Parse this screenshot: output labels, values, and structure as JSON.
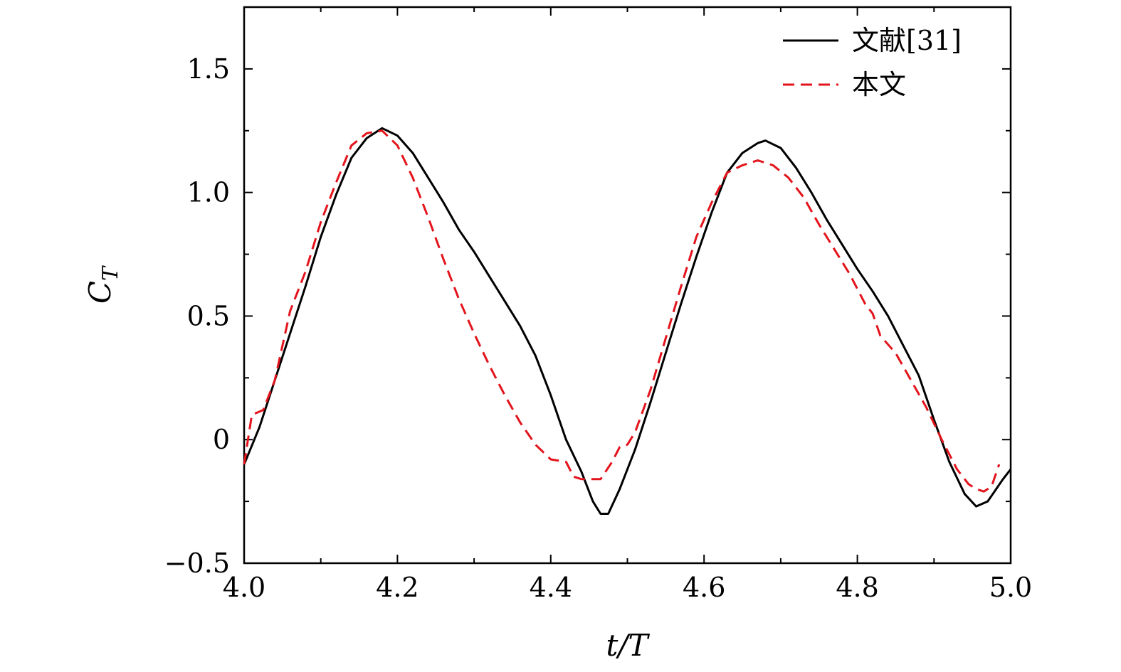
{
  "chart_data": {
    "type": "line",
    "xlabel": "t/T",
    "ylabel": "C_T",
    "xlim": [
      4.0,
      5.0
    ],
    "ylim": [
      -0.5,
      1.75
    ],
    "x_ticks": [
      4.0,
      4.2,
      4.4,
      4.6,
      4.8,
      5.0
    ],
    "x_tick_labels": [
      "4.0",
      "4.2",
      "4.4",
      "4.6",
      "4.8",
      "5.0"
    ],
    "y_ticks": [
      -0.5,
      0,
      0.5,
      1.0,
      1.5
    ],
    "y_tick_labels": [
      "−0.5",
      "0",
      "0.5",
      "1.0",
      "1.5"
    ],
    "legend_position": "top-right",
    "grid": false,
    "series": [
      {
        "name": "文献[31]",
        "style": "solid",
        "color": "#000000",
        "x": [
          4.0,
          4.02,
          4.04,
          4.06,
          4.08,
          4.1,
          4.12,
          4.14,
          4.16,
          4.18,
          4.2,
          4.22,
          4.24,
          4.26,
          4.28,
          4.3,
          4.32,
          4.34,
          4.36,
          4.38,
          4.4,
          4.42,
          4.44,
          4.455,
          4.465,
          4.475,
          4.49,
          4.51,
          4.53,
          4.55,
          4.57,
          4.59,
          4.61,
          4.63,
          4.65,
          4.67,
          4.68,
          4.7,
          4.72,
          4.74,
          4.76,
          4.78,
          4.8,
          4.82,
          4.84,
          4.86,
          4.88,
          4.9,
          4.92,
          4.94,
          4.955,
          4.97,
          4.99,
          5.0
        ],
        "y": [
          -0.1,
          0.05,
          0.24,
          0.43,
          0.62,
          0.82,
          0.99,
          1.14,
          1.22,
          1.26,
          1.23,
          1.16,
          1.06,
          0.96,
          0.85,
          0.76,
          0.66,
          0.56,
          0.46,
          0.34,
          0.18,
          0.0,
          -0.13,
          -0.25,
          -0.3,
          -0.3,
          -0.2,
          -0.04,
          0.15,
          0.35,
          0.55,
          0.74,
          0.92,
          1.08,
          1.16,
          1.2,
          1.21,
          1.18,
          1.1,
          1.0,
          0.89,
          0.79,
          0.69,
          0.6,
          0.5,
          0.38,
          0.26,
          0.08,
          -0.09,
          -0.22,
          -0.27,
          -0.25,
          -0.16,
          -0.12
        ]
      },
      {
        "name": "本文",
        "style": "dashed",
        "color": "#e3141c",
        "x": [
          4.0,
          4.01,
          4.025,
          4.04,
          4.06,
          4.08,
          4.1,
          4.12,
          4.14,
          4.16,
          4.18,
          4.2,
          4.22,
          4.24,
          4.26,
          4.28,
          4.3,
          4.32,
          4.34,
          4.36,
          4.38,
          4.4,
          4.42,
          4.43,
          4.44,
          4.45,
          4.465,
          4.48,
          4.49,
          4.5,
          4.51,
          4.53,
          4.55,
          4.57,
          4.59,
          4.61,
          4.63,
          4.65,
          4.67,
          4.69,
          4.71,
          4.73,
          4.75,
          4.77,
          4.79,
          4.81,
          4.82,
          4.83,
          4.85,
          4.87,
          4.89,
          4.91,
          4.93,
          4.945,
          4.955,
          4.965,
          4.975,
          4.985
        ],
        "y": [
          -0.1,
          0.1,
          0.12,
          0.24,
          0.52,
          0.68,
          0.88,
          1.04,
          1.19,
          1.24,
          1.25,
          1.19,
          1.06,
          0.9,
          0.73,
          0.57,
          0.43,
          0.3,
          0.18,
          0.07,
          -0.02,
          -0.08,
          -0.09,
          -0.15,
          -0.16,
          -0.16,
          -0.16,
          -0.09,
          -0.03,
          -0.02,
          0.03,
          0.2,
          0.41,
          0.62,
          0.82,
          0.96,
          1.08,
          1.11,
          1.13,
          1.11,
          1.06,
          0.98,
          0.87,
          0.77,
          0.67,
          0.55,
          0.51,
          0.42,
          0.35,
          0.24,
          0.13,
          0.0,
          -0.12,
          -0.18,
          -0.2,
          -0.21,
          -0.19,
          -0.1
        ]
      }
    ]
  }
}
